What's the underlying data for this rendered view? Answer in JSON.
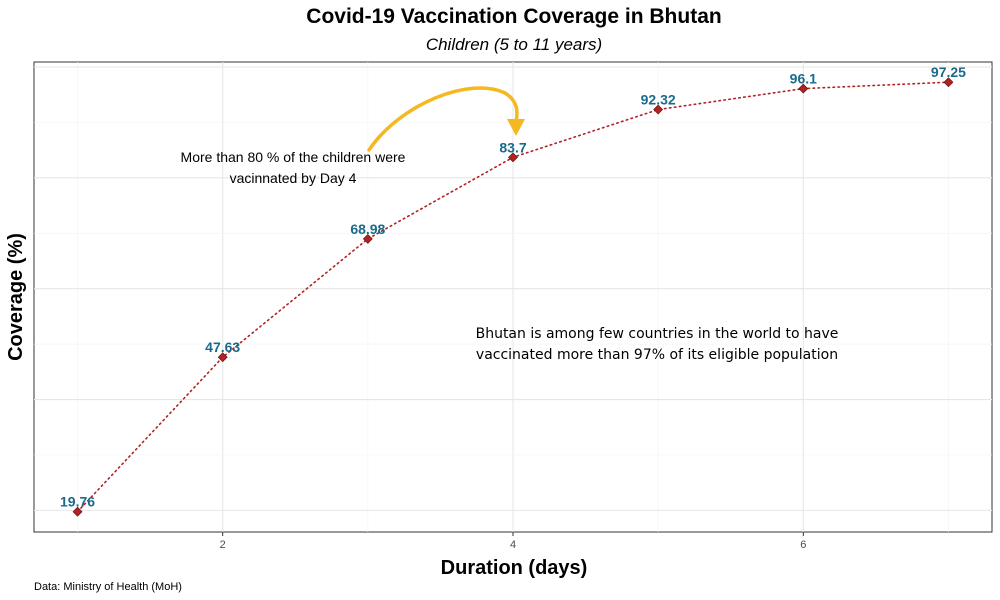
{
  "chart_data": {
    "type": "line",
    "title": "Covid-19 Vaccination Coverage in Bhutan",
    "subtitle": "Children (5 to 11 years)",
    "xlabel": "Duration (days)",
    "ylabel": "Coverage (%)",
    "x": [
      1,
      2,
      3,
      4,
      5,
      6,
      7
    ],
    "y": [
      19.76,
      47.63,
      68.98,
      83.7,
      92.32,
      96.1,
      97.25
    ],
    "data_labels": [
      "19.76",
      "47.63",
      "68.98",
      "83.7",
      "92.32",
      "96.1",
      "97.25"
    ],
    "x_ticks": [
      2,
      4,
      6
    ],
    "xlim": [
      0.7,
      7.3
    ],
    "ylim": [
      16.1,
      100.9
    ],
    "y_tick_labels": "none",
    "grid": true,
    "line_style": "dotted",
    "line_color": "#b22222",
    "marker": "diamond",
    "marker_color": "#b22222",
    "label_color": "#1a6b8a",
    "annotations": [
      {
        "lines": [
          "More than 80 % of the children were",
          "vacinnated by Day 4"
        ],
        "arrow_to_x": 4,
        "arrow_color": "#f6b820"
      },
      {
        "lines": [
          "Bhutan is among few countries in the world to have",
          "vaccinated more than 97% of its eligible population"
        ]
      }
    ],
    "caption": "Data: Ministry of Health (MoH)"
  }
}
